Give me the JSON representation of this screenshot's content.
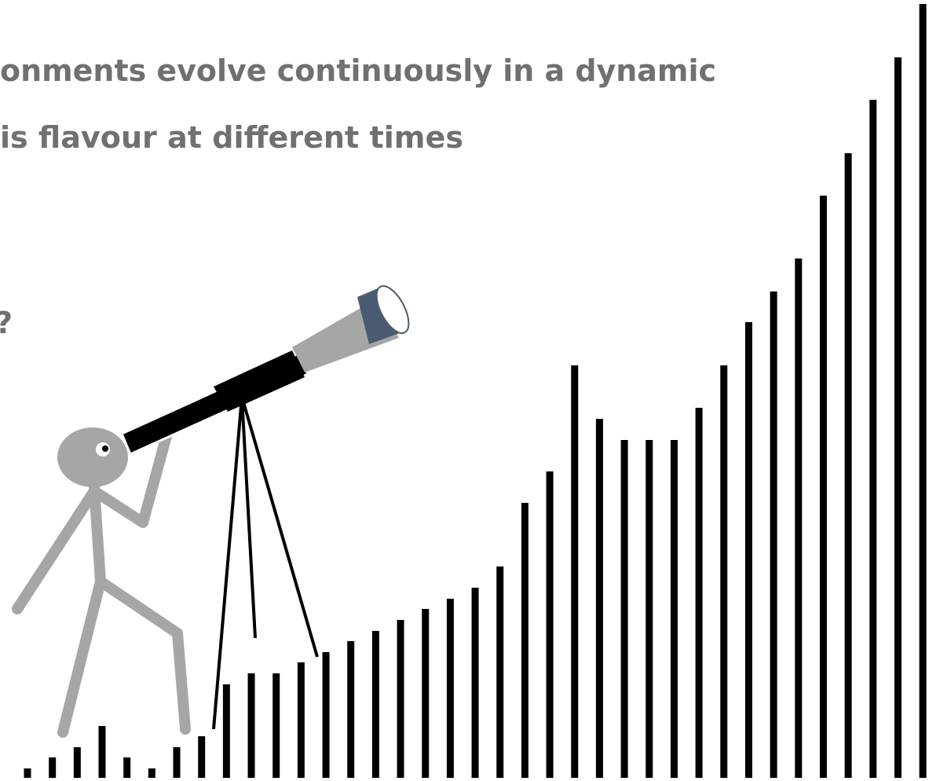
{
  "slide": {
    "lines": [
      "onments evolve continuously in a dynamic",
      "is flavour at different times",
      "?"
    ]
  }
}
